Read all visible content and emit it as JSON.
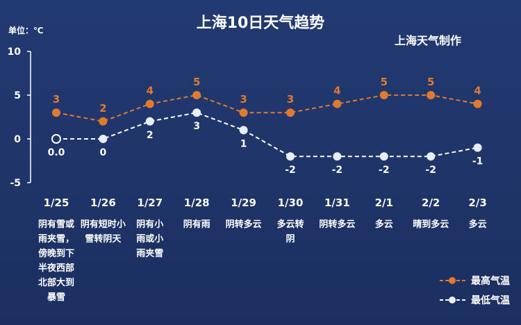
{
  "title": "上海10日天气趋势",
  "subtitle": "上海天气制作",
  "unit": "单位：℃",
  "colors": {
    "high": "#e07a2e",
    "low": "#ffffff",
    "background": "#1f3468"
  },
  "chart_data": {
    "type": "line",
    "categories": [
      "1/25",
      "1/26",
      "1/27",
      "1/28",
      "1/29",
      "1/30",
      "1/31",
      "2/1",
      "2/2",
      "2/3"
    ],
    "descriptions": [
      [
        "阴有雪或",
        "雨夹雪，",
        "傍晚到下",
        "半夜西部",
        "北部大到",
        "暴雪"
      ],
      [
        "阴有短时小",
        "雪转阴天"
      ],
      [
        "阴有小",
        "雨或小",
        "雨夹雪"
      ],
      [
        "阴有雨"
      ],
      [
        "阴转多云"
      ],
      [
        "多云转",
        "阴"
      ],
      [
        "阴转多云"
      ],
      [
        "多云"
      ],
      [
        "晴到多云"
      ],
      [
        "多云"
      ]
    ],
    "yticks": [
      "10",
      "5",
      "0",
      "-5"
    ],
    "ylim": [
      -5,
      10
    ],
    "series": [
      {
        "name": "最高气温",
        "values": [
          3,
          2,
          4,
          5,
          3,
          3,
          4,
          5,
          5,
          4
        ],
        "labels": [
          "3",
          "2",
          "4",
          "5",
          "3",
          "3",
          "4",
          "5",
          "5",
          "4"
        ]
      },
      {
        "name": "最低气温",
        "values": [
          0,
          0,
          2,
          3,
          1,
          -2,
          -2,
          -2,
          -2,
          -1
        ],
        "labels": [
          "0.0",
          "0",
          "2",
          "3",
          "1",
          "-2",
          "-2",
          "-2",
          "-2",
          "-1"
        ]
      }
    ]
  }
}
